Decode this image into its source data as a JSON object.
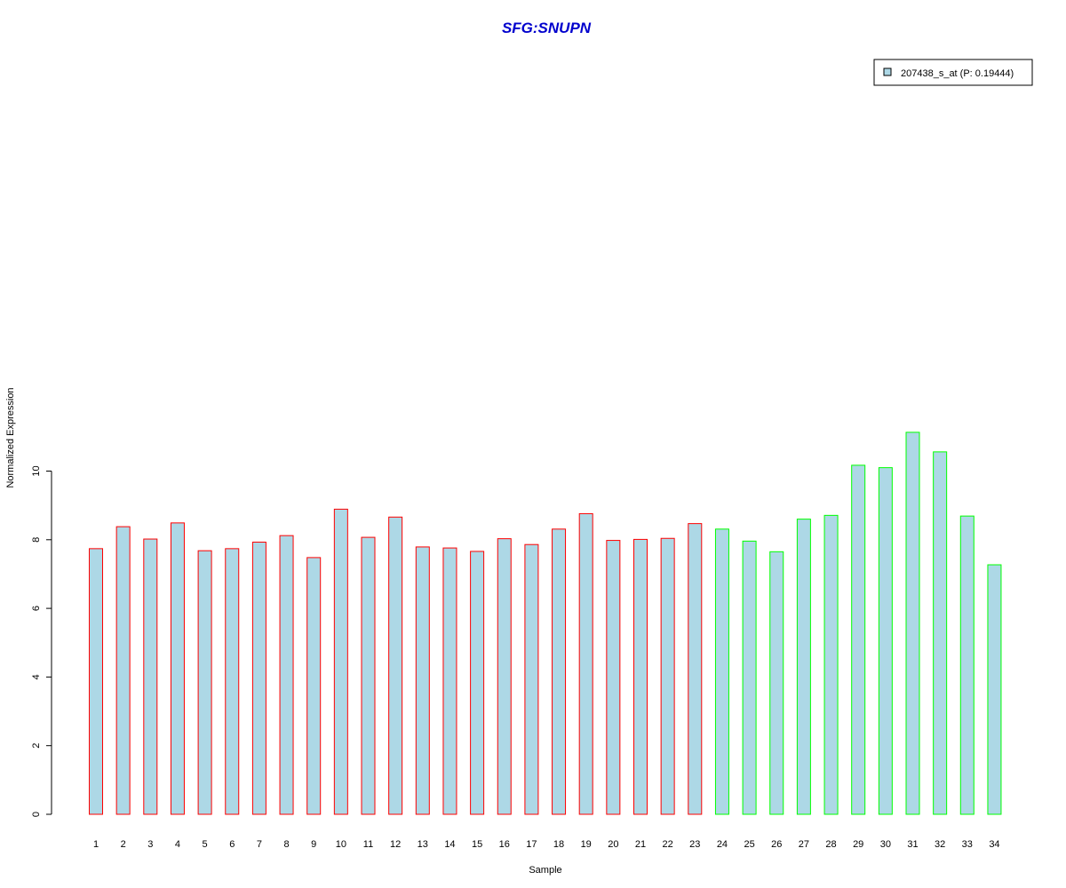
{
  "chart_data": {
    "type": "bar",
    "title": "SFG:SNUPN",
    "xlabel": "Sample",
    "ylabel": "Normalized Expression",
    "categories": [
      "1",
      "2",
      "3",
      "4",
      "5",
      "6",
      "7",
      "8",
      "9",
      "10",
      "11",
      "12",
      "13",
      "14",
      "15",
      "16",
      "17",
      "18",
      "19",
      "20",
      "21",
      "22",
      "23",
      "24",
      "25",
      "26",
      "27",
      "28",
      "29",
      "30",
      "31",
      "32",
      "33",
      "34"
    ],
    "series": [
      {
        "name": "207438_s_at (P: 0.19444)",
        "values": [
          7.74,
          8.38,
          8.02,
          8.49,
          7.68,
          7.74,
          7.93,
          8.12,
          7.48,
          8.89,
          8.07,
          8.66,
          7.79,
          7.76,
          7.66,
          8.03,
          7.86,
          8.31,
          8.76,
          7.98,
          8.01,
          8.04,
          8.47,
          8.31,
          7.96,
          7.65,
          8.6,
          8.71,
          10.17,
          10.1,
          11.13,
          10.56,
          8.69,
          7.27
        ]
      }
    ],
    "groups": [
      {
        "samples": "1-23",
        "border_color": "#ff0000"
      },
      {
        "samples": "24-34",
        "border_color": "#00ff00"
      }
    ],
    "bar_fill_color": "#add8e6",
    "title_color": "#0000cd",
    "yticks": [
      0,
      2,
      4,
      6,
      8,
      10
    ],
    "ylim": [
      0,
      11.13
    ],
    "grid": false,
    "legend_position": "top-right"
  }
}
